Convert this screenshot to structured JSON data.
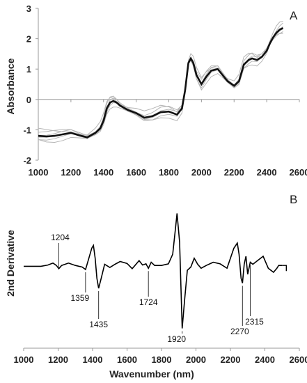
{
  "chart_data": [
    {
      "panel": "A",
      "type": "line",
      "ylabel": "Absorbance",
      "xlabel": "",
      "xlim": [
        1000,
        2600
      ],
      "ylim": [
        -2,
        3
      ],
      "xticks": [
        "1000",
        "1200",
        "1400",
        "1600",
        "1800",
        "2000",
        "2200",
        "2400",
        "2600"
      ],
      "yticks": [
        "-2",
        "-1",
        "0",
        "1",
        "2",
        "3"
      ],
      "grid": false,
      "colors": {
        "mean": "#111111",
        "samples": "#b5b5b5"
      },
      "series": [
        {
          "role": "mean",
          "x": [
            1000,
            1050,
            1100,
            1150,
            1200,
            1250,
            1300,
            1350,
            1380,
            1400,
            1420,
            1440,
            1460,
            1480,
            1500,
            1550,
            1600,
            1650,
            1700,
            1750,
            1800,
            1850,
            1880,
            1900,
            1920,
            1935,
            1950,
            1970,
            2000,
            2030,
            2060,
            2100,
            2130,
            2160,
            2200,
            2230,
            2260,
            2290,
            2310,
            2340,
            2370,
            2400,
            2420,
            2440,
            2460,
            2480,
            2500
          ],
          "y": [
            -1.2,
            -1.22,
            -1.2,
            -1.15,
            -1.1,
            -1.18,
            -1.25,
            -1.1,
            -0.95,
            -0.7,
            -0.3,
            -0.1,
            -0.05,
            -0.1,
            -0.2,
            -0.35,
            -0.45,
            -0.6,
            -0.55,
            -0.42,
            -0.4,
            -0.5,
            -0.3,
            0.3,
            1.2,
            1.35,
            1.2,
            0.8,
            0.5,
            0.75,
            0.95,
            1.0,
            0.8,
            0.6,
            0.45,
            0.6,
            1.15,
            1.3,
            1.35,
            1.3,
            1.4,
            1.6,
            1.85,
            2.05,
            2.2,
            2.3,
            2.35
          ]
        }
      ],
      "sample_offsets": [
        -0.12,
        -0.07,
        -0.03,
        0.02,
        0.06,
        0.1,
        0.14
      ]
    },
    {
      "panel": "B",
      "type": "line",
      "ylabel": "2nd Derivative",
      "xlabel": "Wavenumber (nm)",
      "xlim": [
        1000,
        2600
      ],
      "xticks": [
        "1000",
        "1200",
        "1400",
        "1600",
        "1800",
        "2000",
        "2200",
        "2400",
        "2600"
      ],
      "grid": false,
      "x": [
        1000,
        1100,
        1140,
        1170,
        1190,
        1204,
        1220,
        1260,
        1300,
        1340,
        1359,
        1375,
        1395,
        1405,
        1415,
        1425,
        1435,
        1450,
        1470,
        1500,
        1530,
        1560,
        1600,
        1630,
        1670,
        1690,
        1710,
        1724,
        1740,
        1760,
        1800,
        1840,
        1865,
        1880,
        1890,
        1905,
        1920,
        1935,
        1950,
        1970,
        1990,
        2010,
        2030,
        2060,
        2100,
        2140,
        2180,
        2220,
        2240,
        2250,
        2262,
        2270,
        2280,
        2290,
        2300,
        2315,
        2330,
        2360,
        2390,
        2420,
        2450,
        2470,
        2480,
        2490,
        2500
      ],
      "y": [
        0,
        0,
        0.03,
        0.08,
        0.02,
        -0.06,
        0.02,
        0.08,
        0.02,
        -0.02,
        -0.08,
        0.15,
        0.45,
        0.52,
        0.2,
        -0.3,
        -0.55,
        -0.3,
        0.05,
        -0.03,
        0.05,
        0.12,
        0.07,
        -0.06,
        0.14,
        0.03,
        0.06,
        -0.05,
        0.1,
        0.02,
        0.02,
        0.06,
        0.3,
        0.9,
        1.32,
        0.6,
        -1.55,
        -0.8,
        -0.1,
        -0.02,
        0.2,
        0.05,
        -0.05,
        0.02,
        0.1,
        0.06,
        -0.05,
        0.45,
        0.58,
        0.3,
        -0.3,
        -0.42,
        0.05,
        0.25,
        -0.2,
        0.1,
        0.05,
        0.15,
        0.25,
        -0.05,
        -0.15,
        -0.05,
        0.02,
        0.02,
        0.02
      ],
      "ylim": [
        -1.8,
        1.5
      ],
      "annotations": [
        {
          "text": "1204",
          "x": 1204,
          "side": "above"
        },
        {
          "text": "1359",
          "x": 1359,
          "side": "below"
        },
        {
          "text": "1435",
          "x": 1435,
          "side": "below"
        },
        {
          "text": "1724",
          "x": 1724,
          "side": "below"
        },
        {
          "text": "1920",
          "x": 1920,
          "side": "below"
        },
        {
          "text": "2270",
          "x": 2270,
          "side": "below"
        },
        {
          "text": "2315",
          "x": 2315,
          "side": "below"
        }
      ]
    }
  ]
}
